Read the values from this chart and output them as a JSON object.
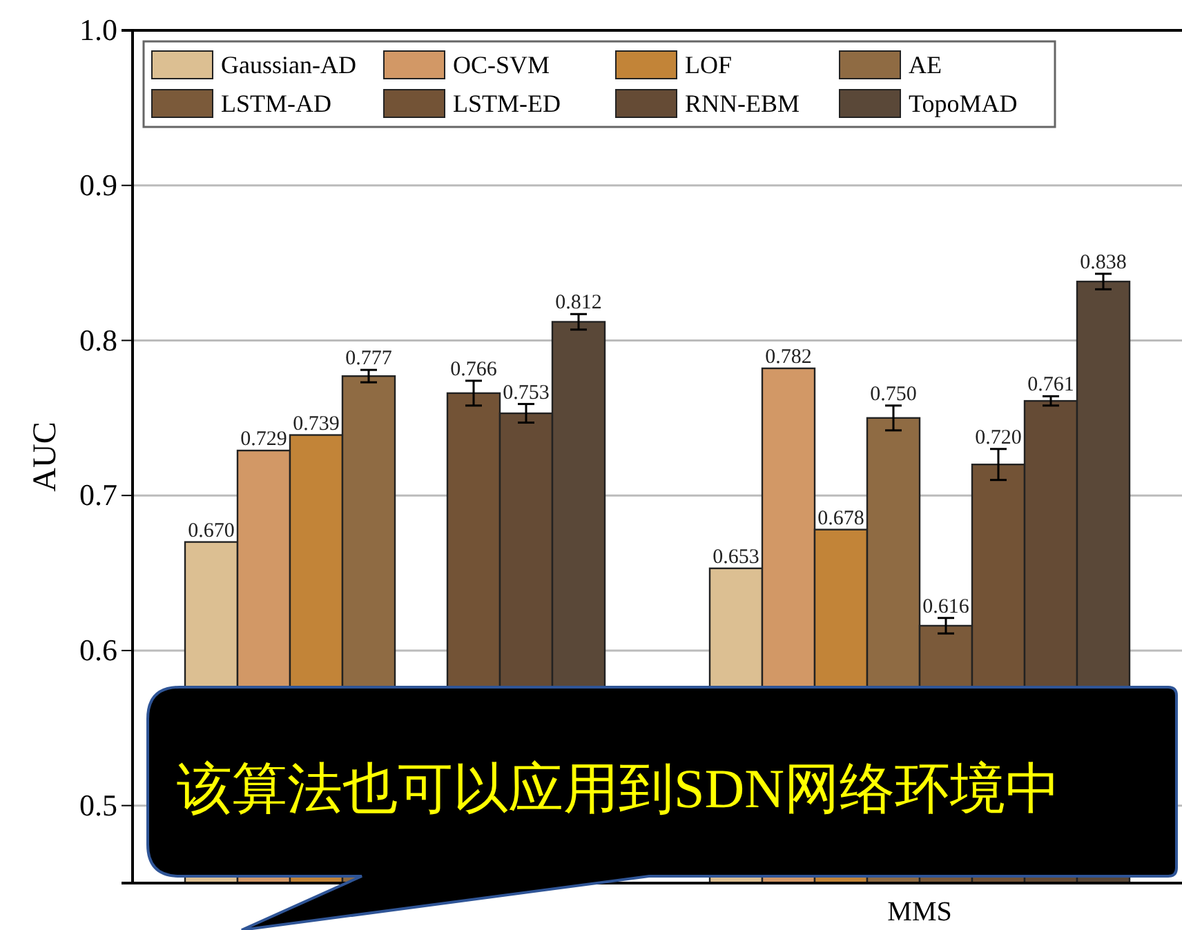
{
  "chart_data": {
    "type": "bar",
    "ylabel": "AUC",
    "categories": [
      null,
      "MMS"
    ],
    "series": [
      {
        "name": "Gaussian-AD",
        "color": "#dcbf92",
        "values": [
          0.67,
          0.653
        ],
        "value_labels": [
          "0.670",
          "0.653"
        ]
      },
      {
        "name": "OC-SVM",
        "color": "#d29866",
        "values": [
          0.729,
          0.782
        ],
        "value_labels": [
          "0.729",
          "0.782"
        ]
      },
      {
        "name": "LOF",
        "color": "#c28438",
        "values": [
          0.739,
          0.678
        ],
        "value_labels": [
          "0.739",
          "0.678"
        ]
      },
      {
        "name": "AE",
        "color": "#8f6b43",
        "values": [
          0.777,
          0.75
        ],
        "errors": [
          0.004,
          0.008
        ],
        "value_labels": [
          "0.777",
          "0.750"
        ]
      },
      {
        "name": "LSTM-AD",
        "color": "#7b5a3a",
        "values": [
          null,
          0.616
        ],
        "errors": [
          null,
          0.005
        ],
        "value_labels": [
          null,
          "0.616"
        ]
      },
      {
        "name": "LSTM-ED",
        "color": "#735336",
        "values": [
          0.766,
          0.72
        ],
        "errors": [
          0.008,
          0.01
        ],
        "value_labels": [
          "0.766",
          "0.720"
        ]
      },
      {
        "name": "RNN-EBM",
        "color": "#654b35",
        "values": [
          0.753,
          0.761
        ],
        "errors": [
          0.006,
          0.003
        ],
        "value_labels": [
          "0.753",
          "0.761"
        ]
      },
      {
        "name": "TopoMAD",
        "color": "#5a4838",
        "values": [
          0.812,
          0.838
        ],
        "errors": [
          0.005,
          0.005
        ],
        "value_labels": [
          "0.812",
          "0.838"
        ]
      }
    ],
    "ylim": [
      0.45,
      1.0
    ],
    "yticks": [
      0.5,
      0.6,
      0.7,
      0.8,
      0.9,
      {
        "value": 1.0,
        "label": "1.0"
      }
    ],
    "grid": "y",
    "legend": "top left",
    "annotations": [
      "该算法也可以应用到SDN网络环境中"
    ]
  }
}
